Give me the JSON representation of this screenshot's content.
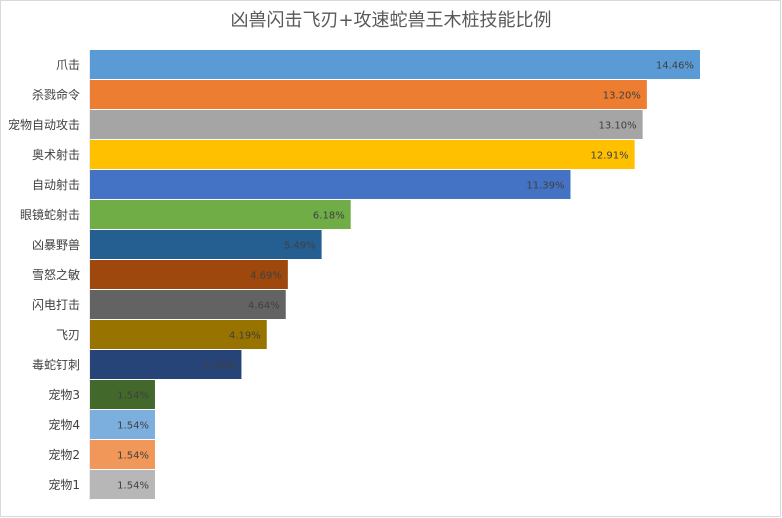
{
  "chart_data": {
    "type": "bar",
    "orientation": "horizontal",
    "title": "凶兽闪击飞刃+攻速蛇兽王木桩技能比例",
    "categories": [
      "爪击",
      "杀戮命令",
      "宠物自动攻击",
      "奥术射击",
      "自动射击",
      "眼镜蛇射击",
      "凶暴野兽",
      "雪怒之敏",
      "闪电打击",
      "飞刃",
      "毒蛇钉刺",
      "宠物3",
      "宠物4",
      "宠物2",
      "宠物1"
    ],
    "values": [
      14.46,
      13.2,
      13.1,
      12.91,
      11.39,
      6.18,
      5.49,
      4.69,
      4.64,
      4.19,
      3.59,
      1.54,
      1.54,
      1.54,
      1.54
    ],
    "value_labels": [
      "14.46%",
      "13.20%",
      "13.10%",
      "12.91%",
      "11.39%",
      "6.18%",
      "5.49%",
      "4.69%",
      "4.64%",
      "4.19%",
      "3.59%",
      "1.54%",
      "1.54%",
      "1.54%",
      "1.54%"
    ],
    "colors": [
      "#5b9bd5",
      "#ed7d31",
      "#a5a5a5",
      "#ffc000",
      "#4472c4",
      "#70ad47",
      "#255e91",
      "#9e480e",
      "#636363",
      "#997300",
      "#264478",
      "#43682b",
      "#7cafdd",
      "#f1975a",
      "#b7b7b7"
    ]
  }
}
